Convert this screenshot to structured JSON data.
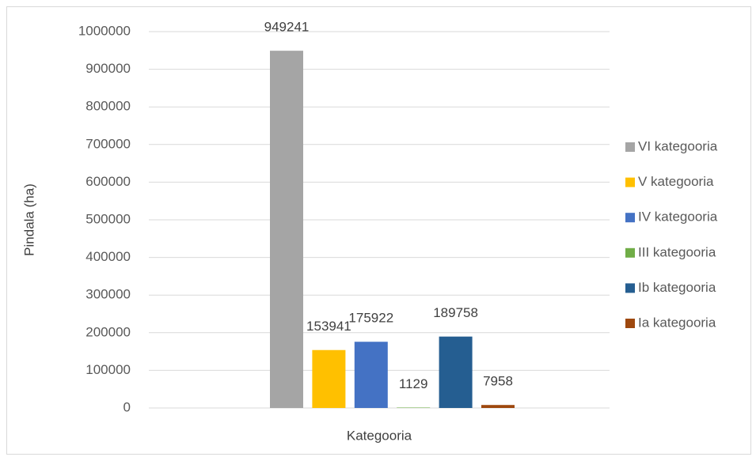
{
  "chart_data": {
    "type": "bar",
    "x_label": "Kategooria",
    "y_label": "Pindala (ha)",
    "categories": [
      null
    ],
    "series": [
      {
        "name": "VI kategooria",
        "color": "#a5a5a5",
        "values": [
          949241
        ]
      },
      {
        "name": "V kategooria",
        "color": "#ffc000",
        "values": [
          153941
        ]
      },
      {
        "name": "IV kategooria",
        "color": "#4472c4",
        "values": [
          175922
        ]
      },
      {
        "name": "III kategooria",
        "color": "#70ad47",
        "values": [
          1129
        ]
      },
      {
        "name": "Ib kategooria",
        "color": "#255e91",
        "values": [
          189758
        ]
      },
      {
        "name": "Ia kategooria",
        "color": "#9e480e",
        "values": [
          7958
        ]
      }
    ],
    "ylim": [
      0,
      1000000
    ],
    "yticks": [
      0,
      100000,
      200000,
      300000,
      400000,
      500000,
      600000,
      700000,
      800000,
      900000,
      1000000
    ],
    "grid": true,
    "legend": "right"
  }
}
